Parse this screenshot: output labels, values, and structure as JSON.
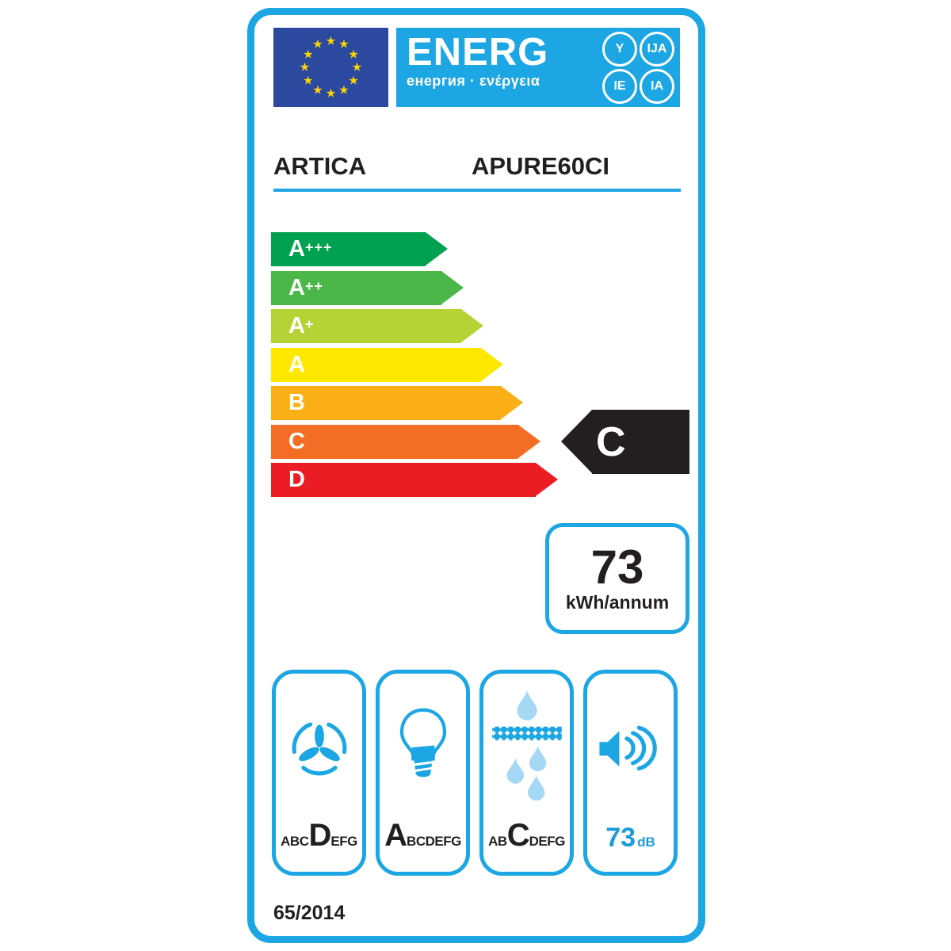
{
  "header": {
    "energ": "ENERG",
    "subtitle": "енергия · ενέργεια",
    "circles": [
      "Y",
      "IJA",
      "IE",
      "IA"
    ]
  },
  "product": {
    "brand": "ARTICA",
    "model": "APURE60CI"
  },
  "scale": {
    "grades": [
      {
        "label": "A+++",
        "color": "#00a150"
      },
      {
        "label": "A++",
        "color": "#4bb748"
      },
      {
        "label": "A+",
        "color": "#b5d334"
      },
      {
        "label": "A",
        "color": "#ffe800"
      },
      {
        "label": "B",
        "color": "#fbaf17"
      },
      {
        "label": "C",
        "color": "#f36d25"
      },
      {
        "label": "D",
        "color": "#ec1c24"
      }
    ],
    "selected_grade": "C",
    "selected_color": "#231f20"
  },
  "energy_consumption": {
    "value": "73",
    "unit": "kWh/annum"
  },
  "metrics": [
    {
      "name": "fan-efficiency-class",
      "icon": "fan-icon",
      "pre": "ABC",
      "class": "D",
      "post": "EFG"
    },
    {
      "name": "lighting-efficiency-class",
      "icon": "bulb-icon",
      "pre": "",
      "class": "A",
      "post": "BCDEFG"
    },
    {
      "name": "grease-filtering-class",
      "icon": "grease-filter-icon",
      "pre": "AB",
      "class": "C",
      "post": "DEFG"
    },
    {
      "name": "noise-level",
      "icon": "speaker-icon",
      "value": "73",
      "unit": "dB"
    }
  ],
  "regulation": "65/2014",
  "colors": {
    "accent": "#1ca6e3",
    "flag_blue": "#2b4a9f",
    "star_yellow": "#ffd500",
    "dark": "#231f20",
    "icon_blue": "#1ca6e3",
    "drop_light": "#a5d8f4",
    "noise_blue": "#1b9cd8"
  }
}
